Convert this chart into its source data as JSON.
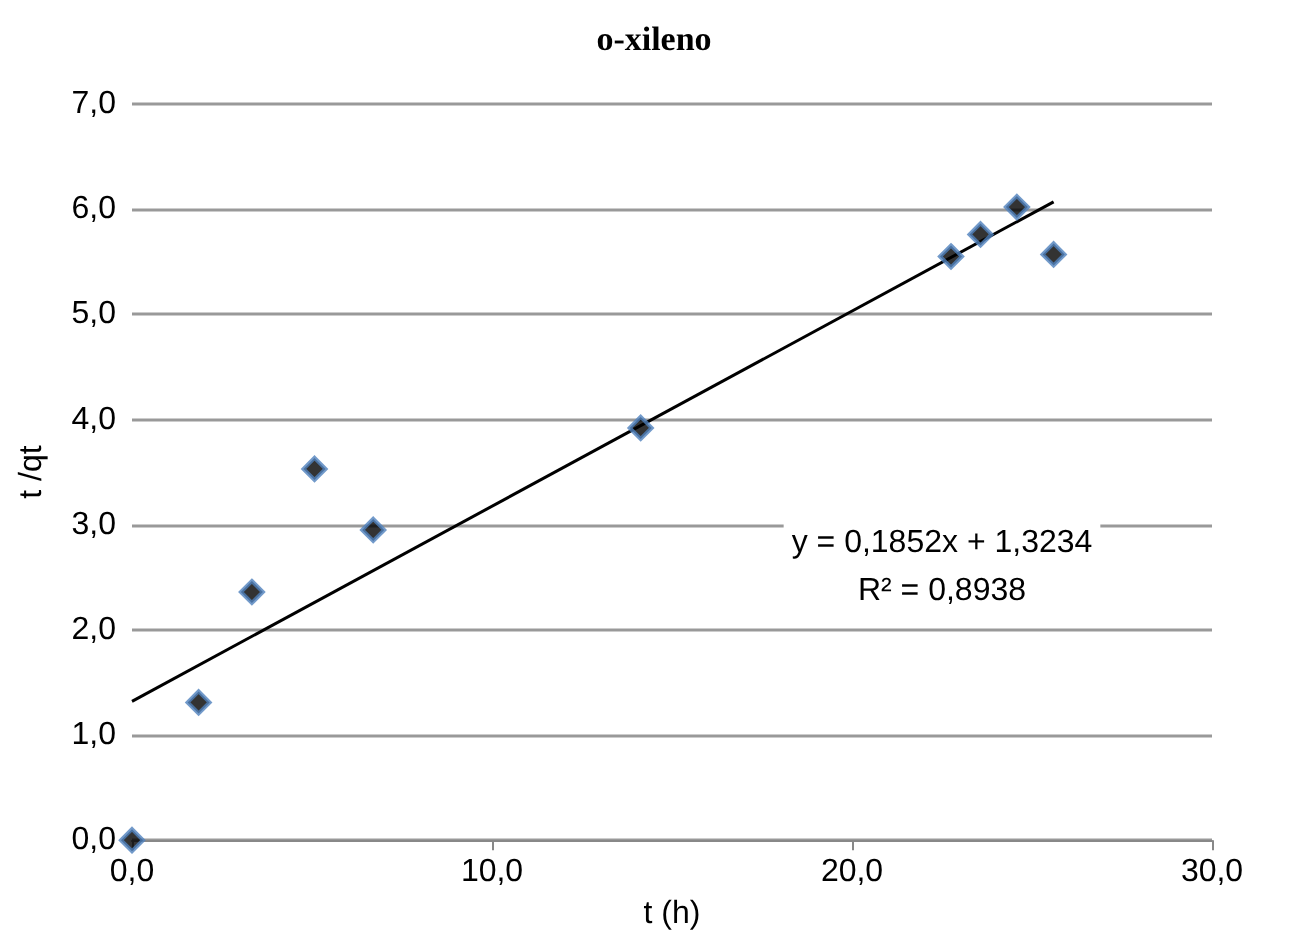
{
  "chart_data": {
    "type": "scatter",
    "title": "o-xileno",
    "xlabel": "t (h)",
    "ylabel": "t /qt",
    "annotations": [
      "y = 0,1852x + 1,3234",
      "R² = 0,8938"
    ],
    "series": [
      {
        "color": "#000000",
        "x": [
          0,
          1.85,
          3.33,
          5.07,
          6.7,
          14.13,
          22.75,
          23.57,
          24.58,
          25.6
        ],
        "values": [
          0,
          1.31,
          2.36,
          3.53,
          2.95,
          3.92,
          5.55,
          5.76,
          6.02,
          5.57
        ]
      },
      {
        "type": "line",
        "marker": "none",
        "color": "#000000",
        "x": [
          0,
          25.6
        ],
        "values": [
          1.32,
          6.07
        ]
      }
    ],
    "xlim": [
      0,
      30
    ],
    "xticks": [
      {
        "value": 0,
        "label": "0,0"
      },
      {
        "value": 10,
        "label": "10,0"
      },
      {
        "value": 20,
        "label": "20,0"
      },
      {
        "value": 30,
        "label": "30,0"
      }
    ],
    "ylim": [
      0,
      7
    ],
    "yticks": [
      {
        "value": 0,
        "label": "0,0"
      },
      {
        "value": 1,
        "label": "1,0"
      },
      {
        "value": 2,
        "label": "2,0"
      },
      {
        "value": 3,
        "label": "3,0"
      },
      {
        "value": 4,
        "label": "4,0"
      },
      {
        "value": 5,
        "label": "5,0"
      },
      {
        "value": 6,
        "label": "6,0"
      },
      {
        "value": 7,
        "label": "7,0"
      }
    ],
    "grid": "y",
    "marker": "diamond"
  }
}
